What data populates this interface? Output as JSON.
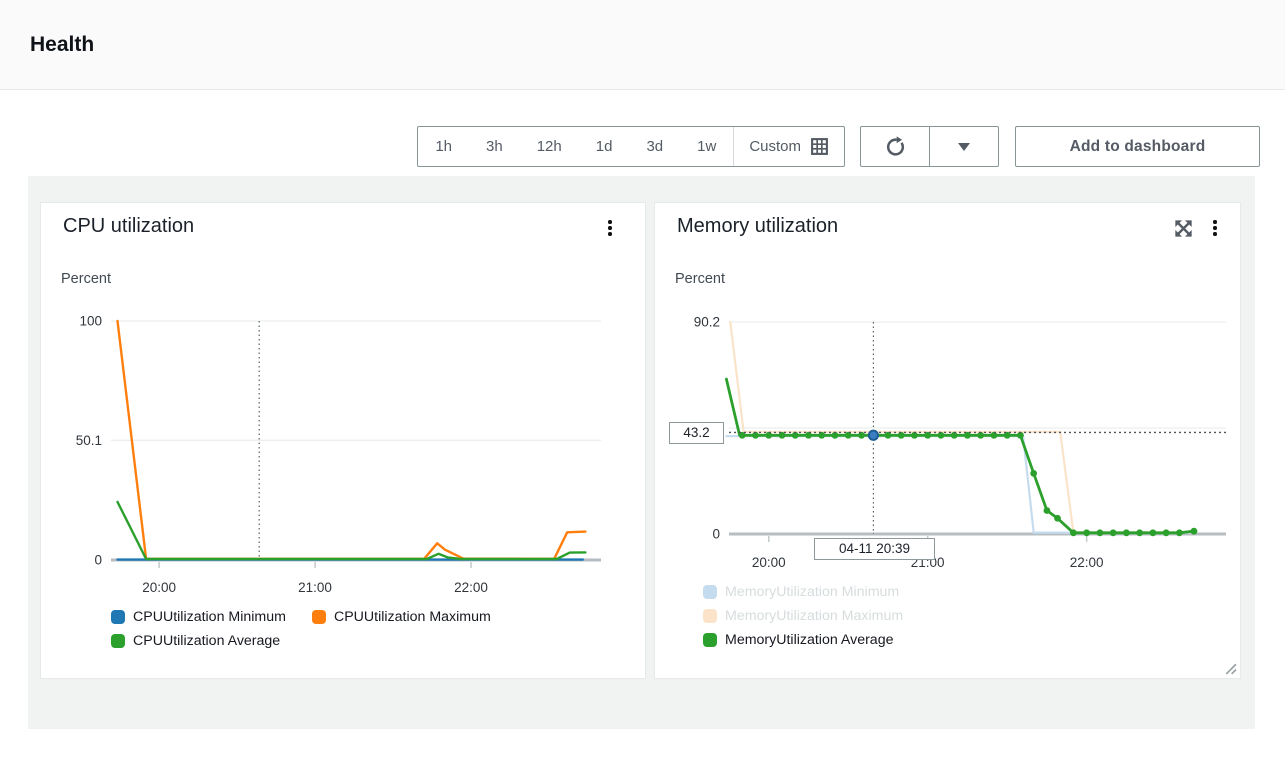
{
  "page": {
    "title": "Health"
  },
  "toolbar": {
    "time_ranges": [
      "1h",
      "3h",
      "12h",
      "1d",
      "3d",
      "1w"
    ],
    "custom_label": "Custom",
    "add_to_dashboard_label": "Add to dashboard"
  },
  "icons": {
    "custom_range": "calendar-grid-icon",
    "refresh": "refresh-icon",
    "refresh_options": "caret-down-icon",
    "widget_menu": "kebab-menu-icon",
    "widget_expand": "expand-arrows-icon",
    "widget_resize": "resize-handle-icon"
  },
  "cpu_card": {
    "title": "CPU utilization",
    "y_axis_label": "Percent",
    "legend": [
      {
        "label": "CPUUtilization Minimum",
        "color": "#1f77b4",
        "dimmed": false
      },
      {
        "label": "CPUUtilization Maximum",
        "color": "#ff7f0e",
        "dimmed": false
      },
      {
        "label": "CPUUtilization Average",
        "color": "#2ca02c",
        "dimmed": false
      }
    ]
  },
  "memory_card": {
    "title": "Memory utilization",
    "y_axis_label": "Percent",
    "legend": [
      {
        "label": "MemoryUtilization Minimum",
        "color": "#c5dcef",
        "dimmed": true
      },
      {
        "label": "MemoryUtilization Maximum",
        "color": "#fbe3c9",
        "dimmed": true
      },
      {
        "label": "MemoryUtilization Average",
        "color": "#2ca02c",
        "dimmed": false
      }
    ]
  },
  "chart_data": [
    {
      "type": "line",
      "title": "CPU utilization",
      "ylabel": "Percent",
      "ylim": [
        0,
        100
      ],
      "yticks": [
        {
          "v": 100,
          "label": "100"
        },
        {
          "v": 50.1,
          "label": "50.1"
        },
        {
          "v": 0,
          "label": "0"
        }
      ],
      "xlim": [
        1181.5,
        1370
      ],
      "xticks": [
        {
          "t": 1200,
          "label": "20:00"
        },
        {
          "t": 1260,
          "label": "21:00"
        },
        {
          "t": 1320,
          "label": "22:00"
        }
      ],
      "crosshair": {
        "t": 1238.5
      },
      "series": [
        {
          "name": "CPUUtilization Minimum",
          "color": "#1f77b4",
          "width": 2.4,
          "points": [
            [
              1184,
              0.15
            ],
            [
              1363,
              0.15
            ]
          ]
        },
        {
          "name": "CPUUtilization Maximum",
          "color": "#ff7f0e",
          "width": 2.4,
          "points": [
            [
              1184,
              100
            ],
            [
              1195,
              0.5
            ],
            [
              1302,
              0.5
            ],
            [
              1307,
              7
            ],
            [
              1310,
              4.3
            ],
            [
              1317,
              0.6
            ],
            [
              1352,
              0.5
            ],
            [
              1357,
              11.6
            ],
            [
              1364,
              11.9
            ]
          ]
        },
        {
          "name": "CPUUtilization Average",
          "color": "#2ca02c",
          "width": 2.4,
          "points": [
            [
              1184,
              24.3
            ],
            [
              1195,
              0.4
            ],
            [
              1303,
              0.4
            ],
            [
              1307.5,
              2.6
            ],
            [
              1311,
              1.1
            ],
            [
              1316,
              0.4
            ],
            [
              1353,
              0.4
            ],
            [
              1358,
              3.1
            ],
            [
              1364,
              3.2
            ]
          ]
        }
      ]
    },
    {
      "type": "line",
      "title": "Memory utilization",
      "ylabel": "Percent",
      "ylim": [
        0,
        90.2
      ],
      "yticks": [
        {
          "v": 90.2,
          "label": "90.2"
        },
        {
          "v": 45.1,
          "label": ""
        },
        {
          "v": 0,
          "label": "0"
        }
      ],
      "xlim": [
        1185,
        1372.6
      ],
      "xticks": [
        {
          "t": 1200,
          "label": "20:00"
        },
        {
          "t": 1260,
          "label": "21:00"
        },
        {
          "t": 1320,
          "label": "22:00"
        }
      ],
      "crosshair": {
        "t": 1239.5,
        "v": 43.2,
        "value_label": "43.2",
        "time_label": "04-11 20:39",
        "dot": {
          "t": 1239.5,
          "v": 42
        }
      },
      "series": [
        {
          "name": "MemoryUtilization Minimum",
          "color": "#c5dcef",
          "width": 2.2,
          "points": [
            [
              1184,
              41.6
            ],
            [
              1296,
              41.6
            ],
            [
              1300,
              0.6
            ],
            [
              1360.5,
              0.6
            ]
          ]
        },
        {
          "name": "MemoryUtilization Maximum",
          "color": "#fbe3c9",
          "width": 2.2,
          "points": [
            [
              1185.5,
              90.2
            ],
            [
              1190.5,
              43.5
            ],
            [
              1310,
              43.5
            ],
            [
              1315,
              0.7
            ],
            [
              1360.5,
              0.7
            ]
          ]
        },
        {
          "name": "MemoryUtilization Average",
          "color": "#2ca02c",
          "width": 2.8,
          "points": [
            [
              1184,
              65.9
            ],
            [
              1189,
              42
            ],
            [
              1295,
              42
            ],
            [
              1300,
              25.8
            ],
            [
              1305,
              10
            ],
            [
              1309,
              6.7
            ],
            [
              1315,
              0.5
            ],
            [
              1355,
              0.5
            ],
            [
              1360.5,
              1.2
            ]
          ],
          "markers": [
            [
              1190,
              42
            ],
            [
              1195,
              42
            ],
            [
              1200,
              42
            ],
            [
              1205,
              42
            ],
            [
              1210,
              42
            ],
            [
              1215,
              42
            ],
            [
              1220,
              42
            ],
            [
              1225,
              42
            ],
            [
              1230,
              42
            ],
            [
              1235,
              42
            ],
            [
              1240,
              42
            ],
            [
              1245,
              42
            ],
            [
              1250,
              42
            ],
            [
              1255,
              42
            ],
            [
              1260,
              42
            ],
            [
              1265,
              42
            ],
            [
              1270,
              42
            ],
            [
              1275,
              42
            ],
            [
              1280,
              42
            ],
            [
              1285,
              42
            ],
            [
              1290,
              42
            ],
            [
              1295,
              42
            ],
            [
              1300,
              25.8
            ],
            [
              1305,
              10
            ],
            [
              1309,
              6.7
            ],
            [
              1315,
              0.5
            ],
            [
              1320,
              0.5
            ],
            [
              1325,
              0.5
            ],
            [
              1330,
              0.5
            ],
            [
              1335,
              0.5
            ],
            [
              1340,
              0.5
            ],
            [
              1345,
              0.5
            ],
            [
              1350,
              0.5
            ],
            [
              1355,
              0.5
            ],
            [
              1360.5,
              1.2
            ]
          ]
        }
      ]
    }
  ]
}
